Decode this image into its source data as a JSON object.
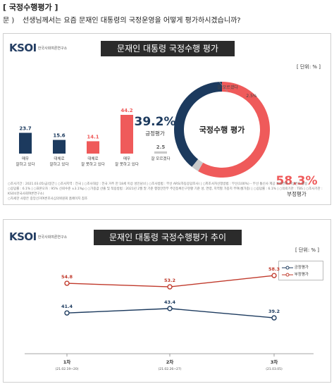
{
  "header": {
    "title": "[ 국정수행평가 ]",
    "q_prefix": "문 )",
    "question": "선생님께서는 요즘 문재인 대통령의 국정운영을 어떻게 평가하시겠습니까?"
  },
  "panel1": {
    "logo": "KSOI",
    "logo_sub": "한국사회여론연구소",
    "title": "문재인 대통령 국정수행 평가",
    "unit": "[ 단위: % ]",
    "footnote_line1": "○조사기간 : 2021.03.05(금)일간  |  ○조사지역 : 전국  |  ○조사대상 : 전국 거주 만 18세 이상 성인남녀  |  ○조사방법 : 무선 ARS(자동응답조사)  |  ○피조사자선정방법 : 무선(100%) – 무선 통신사 제공 휴대전화 가상번호 활용",
    "footnote_line2": "○응답률 : 6.1%  |  ○표본오차 : 95% 신뢰수준 ±3.1%p  |  ○가중값 산출 및 적용방법 : 2021년 2월 말 기준 행정안전부 주민등록인구현황 기준 성, 연령, 지역별 가중치 부여(셀가중)  |  ○응답률 : 6.1%  |  ○의뢰기관 : TBS  |  ○조사기관 : KSOI(한국사회여론연구소)",
    "footnote_line3": "○자세한 사항은 중앙선거여론조사심의위원회 홈페이지 참조"
  },
  "panel2": {
    "logo": "KSOI",
    "logo_sub": "한국사회여론연구소",
    "title": "문재인 대통령 국정수행평가 추이",
    "unit": "[ 단위: % ]"
  },
  "chart_data": [
    {
      "type": "bar",
      "categories": [
        "매우\n잘하고 있다",
        "대체로\n잘하고 있다",
        "대체로\n잘 못하고 있다",
        "매우\n잘 못하고 있다",
        "잘 모르겠다"
      ],
      "values": [
        23.7,
        15.6,
        14.1,
        44.2,
        2.5
      ],
      "colors": [
        "#1c3a5e",
        "#1c3a5e",
        "#ef5a5a",
        "#ef5a5a",
        "#c8c8c8"
      ],
      "value_labels": [
        "23.7",
        "15.6",
        "14.1",
        "44.2",
        "2.5"
      ]
    },
    {
      "type": "pie",
      "donut": true,
      "center_label": "국정수행 평가",
      "slices": [
        {
          "name": "긍정평가",
          "value": 39.2,
          "label": "39.2%",
          "color": "#1c3a5e"
        },
        {
          "name": "부정평가",
          "value": 58.3,
          "label": "58.3%",
          "color": "#ef5a5a"
        },
        {
          "name": "잘 모르겠다",
          "value": 2.5,
          "label": "2.5%",
          "color": "#c8c8c8"
        }
      ]
    },
    {
      "type": "line",
      "x": [
        "1차",
        "2차",
        "3차"
      ],
      "x_sub": [
        "(21.02.19~20)",
        "(21.02.26~27)",
        "(21.03.05)"
      ],
      "series": [
        {
          "name": "부정평가",
          "values": [
            54.8,
            53.2,
            58.3
          ],
          "color": "#c0392b"
        },
        {
          "name": "긍정평가",
          "values": [
            41.4,
            43.4,
            39.2
          ],
          "color": "#1c3a5e"
        }
      ],
      "ylim": [
        30,
        65
      ],
      "legend": "top-right"
    }
  ]
}
